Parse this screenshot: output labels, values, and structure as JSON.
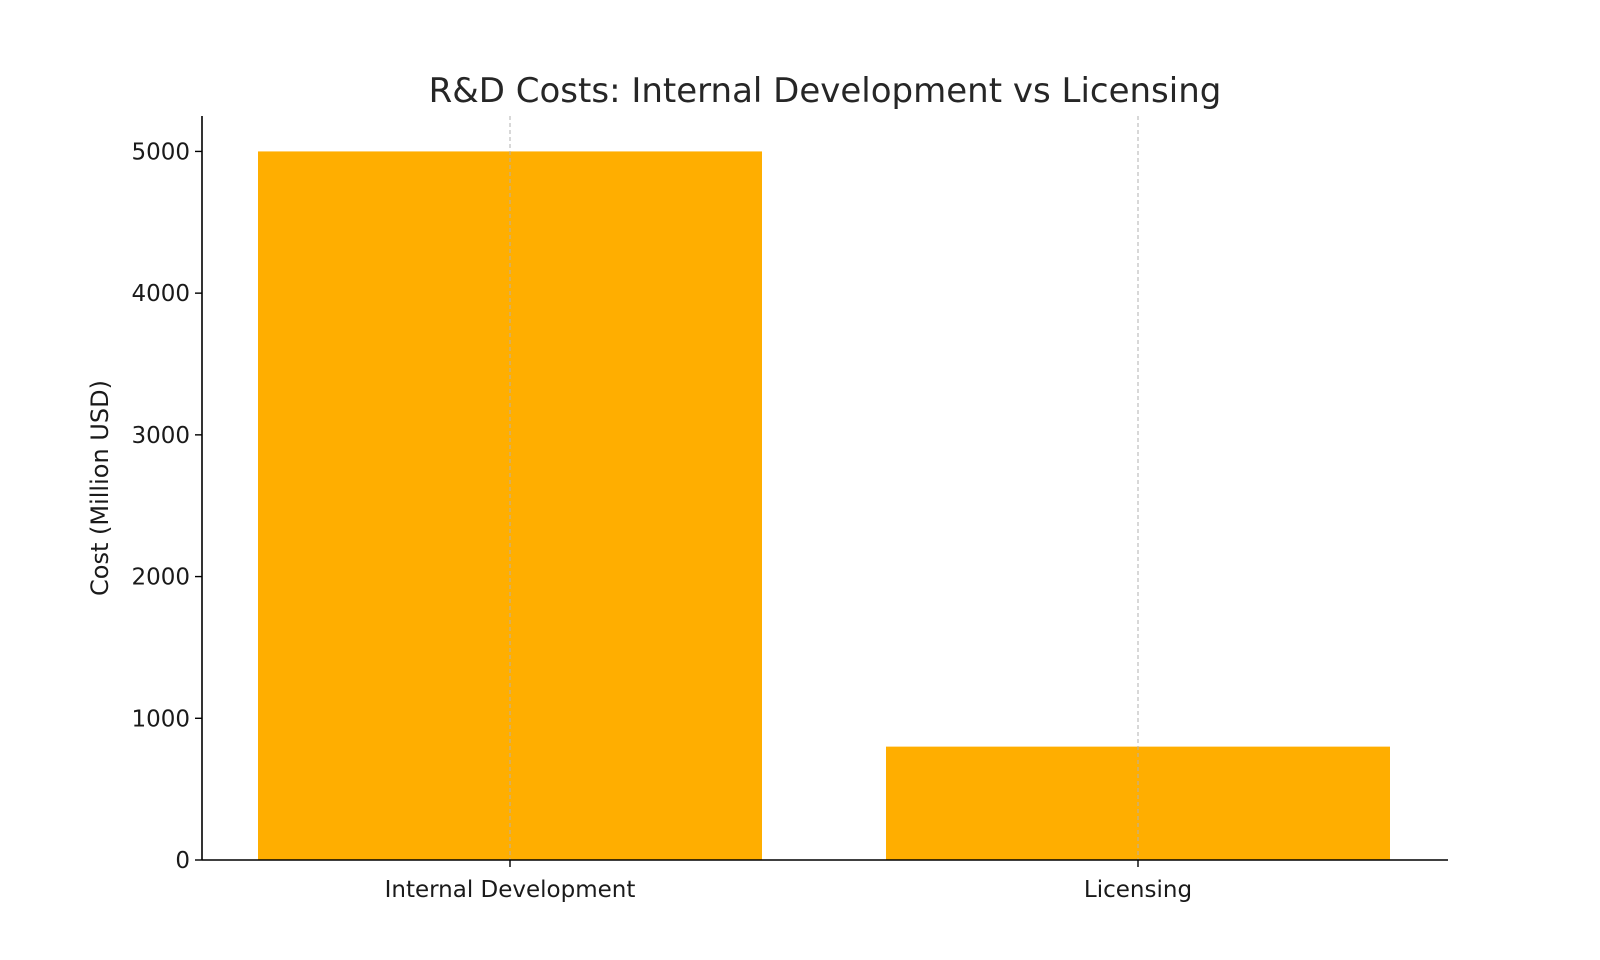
{
  "chart_data": {
    "type": "bar",
    "title": "R&D Costs: Internal Development vs Licensing",
    "xlabel": "",
    "ylabel": "Cost (Million USD)",
    "categories": [
      "Internal Development",
      "Licensing"
    ],
    "values": [
      5000,
      800
    ],
    "ylim": [
      0,
      5250
    ],
    "yticks": [
      0,
      1000,
      2000,
      3000,
      4000,
      5000
    ],
    "grid": "vertical dashed gridlines at categories",
    "legend": "none",
    "colors": {
      "bar": "#FFAE00",
      "axis": "#000000",
      "grid": "#b0b0b0",
      "text": "#1a1a1a"
    }
  }
}
